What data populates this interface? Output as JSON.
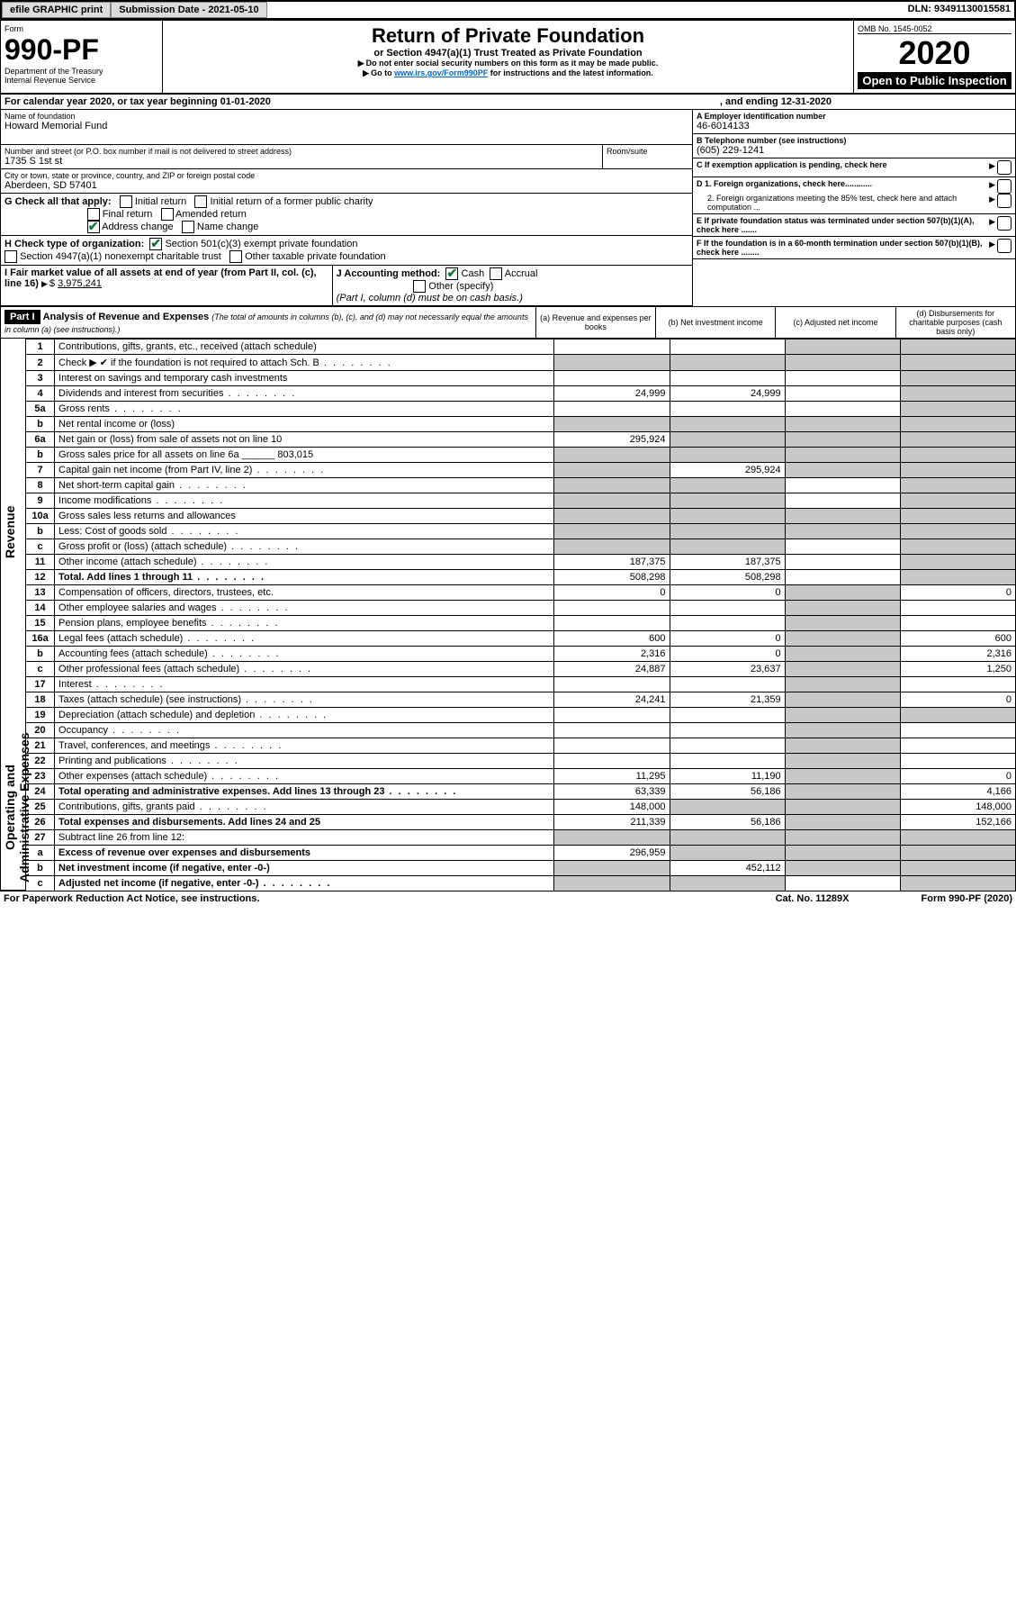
{
  "topbar": {
    "efile": "efile GRAPHIC print",
    "submission_label": "Submission Date - 2021-05-10",
    "dln_label": "DLN: 93491130015581"
  },
  "header": {
    "form_word": "Form",
    "form_num": "990-PF",
    "dept": "Department of the Treasury",
    "irs": "Internal Revenue Service",
    "title": "Return of Private Foundation",
    "subtitle": "or Section 4947(a)(1) Trust Treated as Private Foundation",
    "note1": "Do not enter social security numbers on this form as it may be made public.",
    "note2_pre": "Go to ",
    "note2_link": "www.irs.gov/Form990PF",
    "note2_post": " for instructions and the latest information.",
    "omb": "OMB No. 1545-0052",
    "year": "2020",
    "open": "Open to Public Inspection"
  },
  "calyear": {
    "label": "For calendar year 2020, or tax year beginning 01-01-2020",
    "ending": ", and ending 12-31-2020"
  },
  "id": {
    "name_label": "Name of foundation",
    "name": "Howard Memorial Fund",
    "addr_label": "Number and street (or P.O. box number if mail is not delivered to street address)",
    "addr": "1735 S 1st st",
    "room_label": "Room/suite",
    "city_label": "City or town, state or province, country, and ZIP or foreign postal code",
    "city": "Aberdeen, SD  57401",
    "a_label": "A Employer identification number",
    "a_val": "46-6014133",
    "b_label": "B Telephone number (see instructions)",
    "b_val": "(605) 229-1241",
    "c_label": "C If exemption application is pending, check here",
    "d1": "D 1. Foreign organizations, check here............",
    "d2": "2. Foreign organizations meeting the 85% test, check here and attach computation ...",
    "e_label": "E  If private foundation status was terminated under section 507(b)(1)(A), check here .......",
    "f_label": "F  If the foundation is in a 60-month termination under section 507(b)(1)(B), check here ........"
  },
  "g": {
    "label": "G Check all that apply:",
    "o1": "Initial return",
    "o2": "Initial return of a former public charity",
    "o3": "Final return",
    "o4": "Amended return",
    "o5": "Address change",
    "o6": "Name change"
  },
  "h": {
    "label": "H Check type of organization:",
    "o1": "Section 501(c)(3) exempt private foundation",
    "o2": "Section 4947(a)(1) nonexempt charitable trust",
    "o3": "Other taxable private foundation"
  },
  "i": {
    "label": "I Fair market value of all assets at end of year (from Part II, col. (c), line 16)",
    "val_label": "$",
    "val": "3,975,241"
  },
  "j": {
    "label": "J Accounting method:",
    "cash": "Cash",
    "accrual": "Accrual",
    "other": "Other (specify)",
    "note": "(Part I, column (d) must be on cash basis.)"
  },
  "part1": {
    "bar": "Part I",
    "title": "Analysis of Revenue and Expenses",
    "title_note": "(The total of amounts in columns (b), (c), and (d) may not necessarily equal the amounts in column (a) (see instructions).)",
    "col_a": "(a)   Revenue and expenses per books",
    "col_b": "(b)  Net investment income",
    "col_c": "(c)  Adjusted net income",
    "col_d": "(d)  Disbursements for charitable purposes (cash basis only)"
  },
  "vlabels": {
    "revenue": "Revenue",
    "expenses": "Operating and Administrative Expenses"
  },
  "lines": [
    {
      "n": "1",
      "d": "Contributions, gifts, grants, etc., received (attach schedule)",
      "a": "",
      "b": "",
      "c": "shade",
      "dd": "shade"
    },
    {
      "n": "2",
      "d": "Check ▶ ✔ if the foundation is not required to attach Sch. B",
      "a": "shade",
      "b": "shade",
      "c": "shade",
      "dd": "shade",
      "dots": 1
    },
    {
      "n": "3",
      "d": "Interest on savings and temporary cash investments",
      "a": "",
      "b": "",
      "c": "",
      "dd": "shade"
    },
    {
      "n": "4",
      "d": "Dividends and interest from securities",
      "a": "24,999",
      "b": "24,999",
      "c": "",
      "dd": "shade",
      "dots": 1
    },
    {
      "n": "5a",
      "d": "Gross rents",
      "a": "",
      "b": "",
      "c": "",
      "dd": "shade",
      "dots": 1
    },
    {
      "n": "b",
      "d": "Net rental income or (loss)",
      "a": "shade",
      "b": "shade",
      "c": "shade",
      "dd": "shade"
    },
    {
      "n": "6a",
      "d": "Net gain or (loss) from sale of assets not on line 10",
      "a": "295,924",
      "b": "shade",
      "c": "shade",
      "dd": "shade"
    },
    {
      "n": "b",
      "d": "Gross sales price for all assets on line 6a ______ 803,015",
      "a": "shade",
      "b": "shade",
      "c": "shade",
      "dd": "shade"
    },
    {
      "n": "7",
      "d": "Capital gain net income (from Part IV, line 2)",
      "a": "shade",
      "b": "295,924",
      "c": "shade",
      "dd": "shade",
      "dots": 1
    },
    {
      "n": "8",
      "d": "Net short-term capital gain",
      "a": "shade",
      "b": "shade",
      "c": "",
      "dd": "shade",
      "dots": 1
    },
    {
      "n": "9",
      "d": "Income modifications",
      "a": "shade",
      "b": "shade",
      "c": "",
      "dd": "shade",
      "dots": 1
    },
    {
      "n": "10a",
      "d": "Gross sales less returns and allowances",
      "a": "shade",
      "b": "shade",
      "c": "shade",
      "dd": "shade"
    },
    {
      "n": "b",
      "d": "Less: Cost of goods sold",
      "a": "shade",
      "b": "shade",
      "c": "shade",
      "dd": "shade",
      "dots": 1
    },
    {
      "n": "c",
      "d": "Gross profit or (loss) (attach schedule)",
      "a": "shade",
      "b": "shade",
      "c": "",
      "dd": "shade",
      "dots": 1
    },
    {
      "n": "11",
      "d": "Other income (attach schedule)",
      "a": "187,375",
      "b": "187,375",
      "c": "",
      "dd": "shade",
      "dots": 1
    },
    {
      "n": "12",
      "d": "Total. Add lines 1 through 11",
      "a": "508,298",
      "b": "508,298",
      "c": "",
      "dd": "shade",
      "bold": 1,
      "dots": 1
    },
    {
      "n": "13",
      "d": "Compensation of officers, directors, trustees, etc.",
      "a": "0",
      "b": "0",
      "c": "shade",
      "dd": "0"
    },
    {
      "n": "14",
      "d": "Other employee salaries and wages",
      "a": "",
      "b": "",
      "c": "shade",
      "dd": "",
      "dots": 1
    },
    {
      "n": "15",
      "d": "Pension plans, employee benefits",
      "a": "",
      "b": "",
      "c": "shade",
      "dd": "",
      "dots": 1
    },
    {
      "n": "16a",
      "d": "Legal fees (attach schedule)",
      "a": "600",
      "b": "0",
      "c": "shade",
      "dd": "600",
      "dots": 1
    },
    {
      "n": "b",
      "d": "Accounting fees (attach schedule)",
      "a": "2,316",
      "b": "0",
      "c": "shade",
      "dd": "2,316",
      "dots": 1
    },
    {
      "n": "c",
      "d": "Other professional fees (attach schedule)",
      "a": "24,887",
      "b": "23,637",
      "c": "shade",
      "dd": "1,250",
      "dots": 1
    },
    {
      "n": "17",
      "d": "Interest",
      "a": "",
      "b": "",
      "c": "shade",
      "dd": "",
      "dots": 1
    },
    {
      "n": "18",
      "d": "Taxes (attach schedule) (see instructions)",
      "a": "24,241",
      "b": "21,359",
      "c": "shade",
      "dd": "0",
      "dots": 1
    },
    {
      "n": "19",
      "d": "Depreciation (attach schedule) and depletion",
      "a": "",
      "b": "",
      "c": "shade",
      "dd": "shade",
      "dots": 1
    },
    {
      "n": "20",
      "d": "Occupancy",
      "a": "",
      "b": "",
      "c": "shade",
      "dd": "",
      "dots": 1
    },
    {
      "n": "21",
      "d": "Travel, conferences, and meetings",
      "a": "",
      "b": "",
      "c": "shade",
      "dd": "",
      "dots": 1
    },
    {
      "n": "22",
      "d": "Printing and publications",
      "a": "",
      "b": "",
      "c": "shade",
      "dd": "",
      "dots": 1
    },
    {
      "n": "23",
      "d": "Other expenses (attach schedule)",
      "a": "11,295",
      "b": "11,190",
      "c": "shade",
      "dd": "0",
      "dots": 1
    },
    {
      "n": "24",
      "d": "Total operating and administrative expenses. Add lines 13 through 23",
      "a": "63,339",
      "b": "56,186",
      "c": "shade",
      "dd": "4,166",
      "bold": 1,
      "dots": 1
    },
    {
      "n": "25",
      "d": "Contributions, gifts, grants paid",
      "a": "148,000",
      "b": "shade",
      "c": "shade",
      "dd": "148,000",
      "dots": 1
    },
    {
      "n": "26",
      "d": "Total expenses and disbursements. Add lines 24 and 25",
      "a": "211,339",
      "b": "56,186",
      "c": "shade",
      "dd": "152,166",
      "bold": 1
    },
    {
      "n": "27",
      "d": "Subtract line 26 from line 12:",
      "a": "shade",
      "b": "shade",
      "c": "shade",
      "dd": "shade"
    },
    {
      "n": "a",
      "d": "Excess of revenue over expenses and disbursements",
      "a": "296,959",
      "b": "shade",
      "c": "shade",
      "dd": "shade",
      "bold": 1
    },
    {
      "n": "b",
      "d": "Net investment income (if negative, enter -0-)",
      "a": "shade",
      "b": "452,112",
      "c": "shade",
      "dd": "shade",
      "bold": 1
    },
    {
      "n": "c",
      "d": "Adjusted net income (if negative, enter -0-)",
      "a": "shade",
      "b": "shade",
      "c": "",
      "dd": "shade",
      "bold": 1,
      "dots": 1
    }
  ],
  "footer": {
    "left": "For Paperwork Reduction Act Notice, see instructions.",
    "mid": "Cat. No. 11289X",
    "right": "Form 990-PF (2020)"
  },
  "revenue_rows": 16,
  "colors": {
    "shade": "#c8c8c8",
    "link": "#0066cc",
    "check": "#0a7a3a"
  }
}
